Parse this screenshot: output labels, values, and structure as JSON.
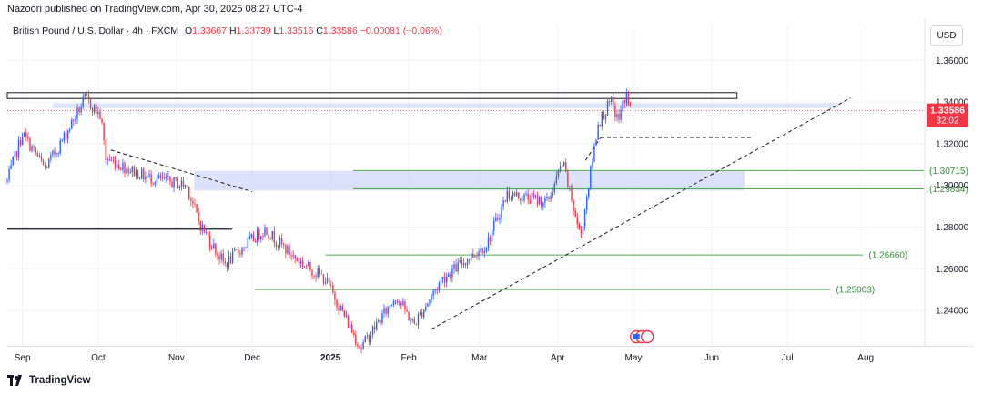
{
  "publisher_line": "Nazoori published on TradingView.com, Apr 30, 2025 08:27 UTC-4",
  "legend": {
    "symbol": "British Pound / U.S. Dollar · 4h · FXCM",
    "open_label": "O",
    "open": "1.33667",
    "high_label": "H",
    "high": "1.33739",
    "low_label": "L",
    "low": "1.33516",
    "close_label": "C",
    "close": "1.33586",
    "change": "−0.00081 (−0.06%)"
  },
  "currency": "USD",
  "footer_brand": "TradingView",
  "colors": {
    "up": "#2962ff",
    "down": "#f23645",
    "zone": "#c5cff5",
    "support": "#4caf50",
    "price_tag": "#f23645",
    "axis_text": "#131722"
  },
  "chart_data": {
    "type": "candlestick",
    "title": "British Pound / U.S. Dollar · 4h · FXCM",
    "ylim": [
      1.223,
      1.368
    ],
    "y_ticks": [
      "1.36000",
      "1.34000",
      "1.32000",
      "1.30000",
      "1.28000",
      "1.26000",
      "1.24000"
    ],
    "y_tick_values": [
      1.36,
      1.34,
      1.32,
      1.3,
      1.28,
      1.26,
      1.24
    ],
    "x_ticks": [
      "Sep",
      "Oct",
      "Nov",
      "Dec",
      "2025",
      "Feb",
      "Mar",
      "Apr",
      "May",
      "Jun",
      "Jul",
      "Aug"
    ],
    "x_tick_dates": [
      "2024-09-01",
      "2024-10-01",
      "2024-11-01",
      "2024-12-01",
      "2025-01-01",
      "2025-02-01",
      "2025-03-01",
      "2025-04-01",
      "2025-05-01",
      "2025-06-01",
      "2025-07-01",
      "2025-08-01"
    ],
    "x_range": [
      "2024-08-26",
      "2025-08-24"
    ],
    "price_path": [
      [
        "2024-08-26",
        1.302
      ],
      [
        "2024-09-01",
        1.325
      ],
      [
        "2024-09-10",
        1.308
      ],
      [
        "2024-09-16",
        1.32
      ],
      [
        "2024-09-26",
        1.342
      ],
      [
        "2024-10-02",
        1.333
      ],
      [
        "2024-10-04",
        1.313
      ],
      [
        "2024-10-20",
        1.304
      ],
      [
        "2024-11-05",
        1.3
      ],
      [
        "2024-11-10",
        1.282
      ],
      [
        "2024-11-20",
        1.262
      ],
      [
        "2024-11-27",
        1.27
      ],
      [
        "2024-12-06",
        1.279
      ],
      [
        "2024-12-18",
        1.265
      ],
      [
        "2024-12-30",
        1.255
      ],
      [
        "2025-01-13",
        1.222
      ],
      [
        "2025-01-27",
        1.247
      ],
      [
        "2025-02-03",
        1.233
      ],
      [
        "2025-02-14",
        1.255
      ],
      [
        "2025-03-04",
        1.272
      ],
      [
        "2025-03-12",
        1.296
      ],
      [
        "2025-03-28",
        1.292
      ],
      [
        "2025-04-03",
        1.311
      ],
      [
        "2025-04-10",
        1.275
      ],
      [
        "2025-04-17",
        1.33
      ],
      [
        "2025-04-22",
        1.34
      ],
      [
        "2025-04-25",
        1.331
      ],
      [
        "2025-04-28",
        1.344
      ],
      [
        "2025-04-30",
        1.336
      ]
    ],
    "last_price": "1.33586",
    "countdown": "32:02",
    "levels": [
      {
        "value": 1.30715,
        "label": "(1.30715)",
        "from": "2025-01-10",
        "to": "2025-08-24"
      },
      {
        "value": 1.29834,
        "label": "(1.29834)",
        "from": "2025-01-10",
        "to": "2025-08-24"
      },
      {
        "value": 1.2666,
        "label": "(1.26660)",
        "from": "2024-12-30",
        "to": "2025-07-31"
      },
      {
        "value": 1.25003,
        "label": "(1.25003)",
        "from": "2024-12-02",
        "to": "2025-07-18"
      }
    ],
    "resistance_box": {
      "from": "2024-08-26",
      "to": "2025-06-11",
      "top": 1.3445,
      "bottom": 1.3417
    },
    "supply_zone": {
      "from": "2024-09-13",
      "to": "2025-07-21",
      "top": 1.3395,
      "bottom": 1.337
    },
    "demand_zone": {
      "from": "2024-11-08",
      "to": "2025-06-14",
      "top": 1.307,
      "bottom": 1.2975
    },
    "old_support": {
      "from": "2024-08-26",
      "to": "2024-11-23",
      "value": 1.279
    },
    "dashed_lines": [
      {
        "x1": "2024-10-06",
        "y1": 1.317,
        "x2": "2024-12-01",
        "y2": 1.297
      },
      {
        "x1": "2025-02-10",
        "y1": 1.231,
        "x2": "2025-07-26",
        "y2": 1.342
      },
      {
        "x1": "2025-04-12",
        "y1": 1.312,
        "x2": "2025-04-18",
        "y2": 1.323
      },
      {
        "x1": "2025-04-18",
        "y1": 1.323,
        "x2": "2025-06-17",
        "y2": 1.323
      }
    ],
    "grid": true
  }
}
